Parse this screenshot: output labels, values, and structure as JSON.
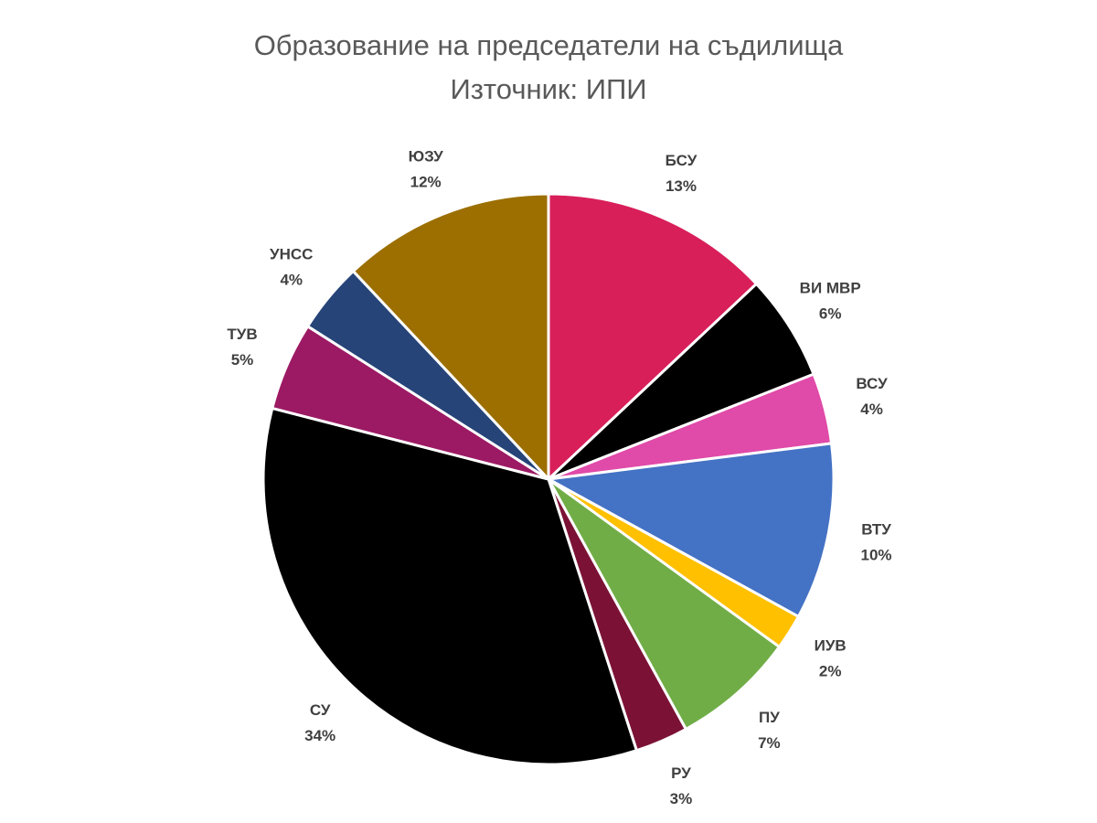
{
  "chart_data": {
    "type": "pie",
    "title": "Образование на председатели на съдилища",
    "subtitle": "Източник: ИПИ",
    "categories": [
      "БСУ",
      "ВИ МВР",
      "ВСУ",
      "ВТУ",
      "ИУВ",
      "ПУ",
      "РУ",
      "СУ",
      "ТУВ",
      "УНСС",
      "ЮЗУ"
    ],
    "values": [
      13,
      6,
      4,
      10,
      2,
      7,
      3,
      34,
      5,
      4,
      12
    ],
    "value_labels": [
      "13%",
      "6%",
      "4%",
      "10%",
      "2%",
      "7%",
      "3%",
      "34%",
      "5%",
      "4%",
      "12%"
    ],
    "colors": [
      "#d81f5a",
      "#000000",
      "#e04aa8",
      "#4472c4",
      "#ffc000",
      "#70ad47",
      "#7b1236",
      "#000000",
      "#9c1a64",
      "#264478",
      "#9c6f00"
    ]
  }
}
